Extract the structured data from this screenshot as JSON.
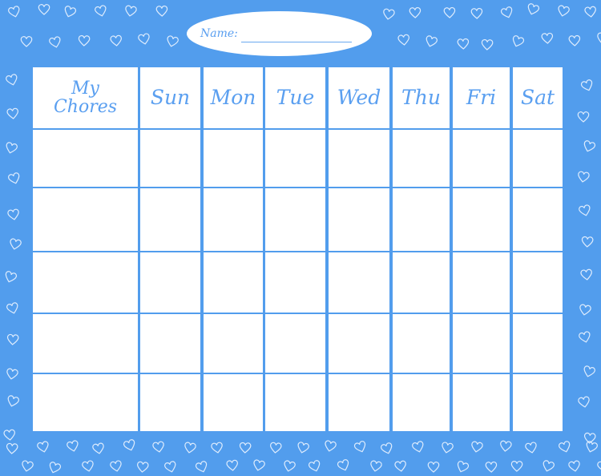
{
  "colors": {
    "background": "#529ded",
    "cell": "#ffffff",
    "text": "#5a9ff0"
  },
  "name_field": {
    "label": "Name:",
    "value": ""
  },
  "chart": {
    "first_header": "My Chores",
    "days": [
      "Sun",
      "Mon",
      "Tue",
      "Wed",
      "Thu",
      "Fri",
      "Sat"
    ],
    "rows": [
      [
        "",
        "",
        "",
        "",
        "",
        "",
        "",
        ""
      ],
      [
        "",
        "",
        "",
        "",
        "",
        "",
        "",
        ""
      ],
      [
        "",
        "",
        "",
        "",
        "",
        "",
        "",
        ""
      ],
      [
        "",
        "",
        "",
        "",
        "",
        "",
        "",
        ""
      ],
      [
        "",
        "",
        "",
        "",
        "",
        "",
        "",
        ""
      ]
    ]
  },
  "decoration": {
    "icon": "heart-icon"
  }
}
